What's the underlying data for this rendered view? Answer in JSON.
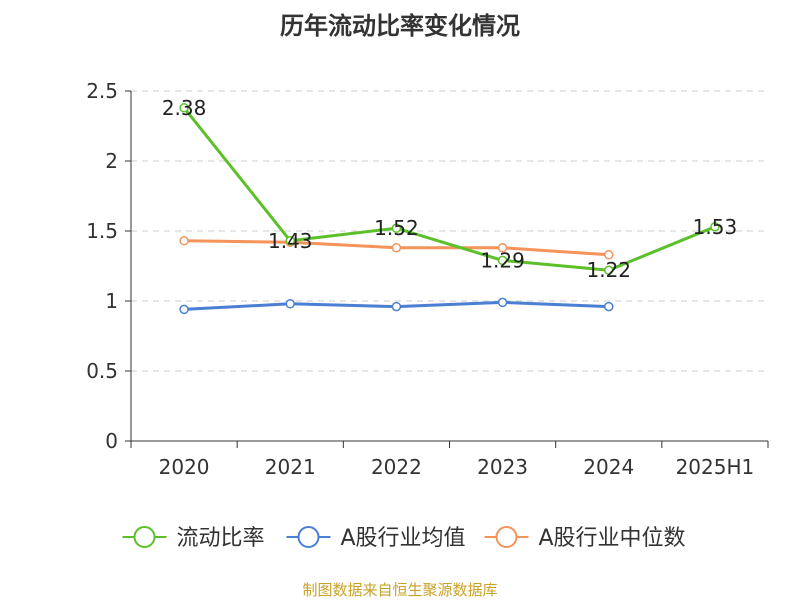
{
  "title": "历年流动比率变化情况",
  "source": "制图数据来自恒生聚源数据库",
  "chart_data": {
    "type": "line",
    "categories": [
      "2020",
      "2021",
      "2022",
      "2023",
      "2024",
      "2025H1"
    ],
    "ylim": [
      0,
      2.5
    ],
    "yticks": [
      "0",
      "0.5",
      "1",
      "1.5",
      "2",
      "2.5"
    ],
    "grid": true,
    "legend_position": "bottom",
    "series": [
      {
        "name": "流动比率",
        "color": "#5cc02b",
        "values": [
          2.38,
          1.43,
          1.52,
          1.29,
          1.22,
          1.53
        ],
        "labels": [
          "2.38",
          "1.43",
          "1.52",
          "1.29",
          "1.22",
          "1.53"
        ]
      },
      {
        "name": "A股行业均值",
        "color": "#4a7fd4",
        "values": [
          0.94,
          0.98,
          0.96,
          0.99,
          0.96,
          null
        ]
      },
      {
        "name": "A股行业中位数",
        "color": "#f4935a",
        "values": [
          1.43,
          1.42,
          1.38,
          1.38,
          1.33,
          null
        ]
      }
    ]
  }
}
